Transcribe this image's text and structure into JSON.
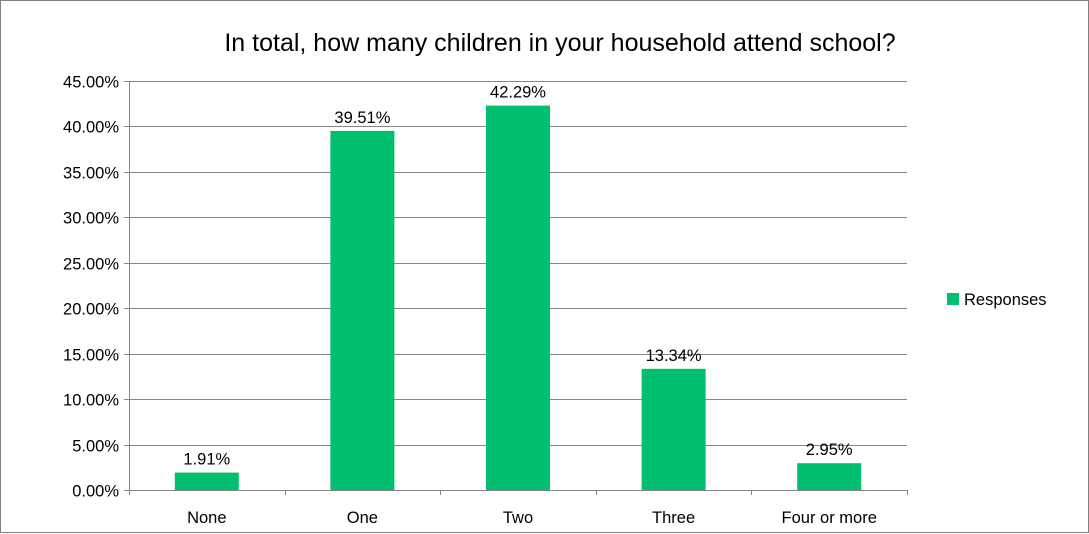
{
  "chart_data": {
    "type": "bar",
    "title": "In total, how many children in your household attend school?",
    "xlabel": "",
    "ylabel": "",
    "categories": [
      "None",
      "One",
      "Two",
      "Three",
      "Four or more"
    ],
    "series": [
      {
        "name": "Responses",
        "values": [
          1.91,
          39.51,
          42.29,
          13.34,
          2.95
        ],
        "data_labels": [
          "1.91%",
          "39.51%",
          "42.29%",
          "13.34%",
          "2.95%"
        ],
        "color": "#00BF6F"
      }
    ],
    "ylim": [
      0,
      45
    ],
    "yticks": [
      0,
      5,
      10,
      15,
      20,
      25,
      30,
      35,
      40,
      45
    ],
    "ytick_labels": [
      "0.00%",
      "5.00%",
      "10.00%",
      "15.00%",
      "20.00%",
      "25.00%",
      "30.00%",
      "35.00%",
      "40.00%",
      "45.00%"
    ],
    "grid": true,
    "gridline_color": "#868686",
    "legend_position": "right"
  }
}
